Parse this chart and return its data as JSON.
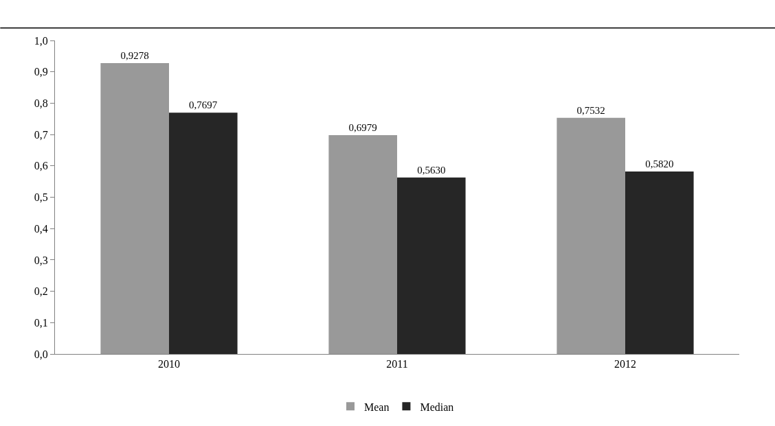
{
  "chart_data": {
    "type": "bar",
    "categories": [
      "2010",
      "2011",
      "2012"
    ],
    "series": [
      {
        "name": "Mean",
        "color": "#999999",
        "values": [
          0.9278,
          0.6979,
          0.7532
        ],
        "value_labels": [
          "0,9278",
          "0,6979",
          "0,7532"
        ]
      },
      {
        "name": "Median",
        "color": "#262626",
        "values": [
          0.7697,
          0.563,
          0.582
        ],
        "value_labels": [
          "0,7697",
          "0,5630",
          "0,5820"
        ]
      }
    ],
    "ylim": [
      0,
      1
    ],
    "yticks": [
      {
        "value": 0,
        "label": "0,0"
      },
      {
        "value": 0.1,
        "label": "0,1"
      },
      {
        "value": 0.2,
        "label": "0,2"
      },
      {
        "value": 0.3,
        "label": "0,3"
      },
      {
        "value": 0.4,
        "label": "0,4"
      },
      {
        "value": 0.5,
        "label": "0,5"
      },
      {
        "value": 0.6,
        "label": "0,6"
      },
      {
        "value": 0.7,
        "label": "0,7"
      },
      {
        "value": 0.8,
        "label": "0,8"
      },
      {
        "value": 0.9,
        "label": "0,9"
      },
      {
        "value": 1,
        "label": "1,0"
      }
    ],
    "grid": false,
    "legend": "bottom"
  }
}
